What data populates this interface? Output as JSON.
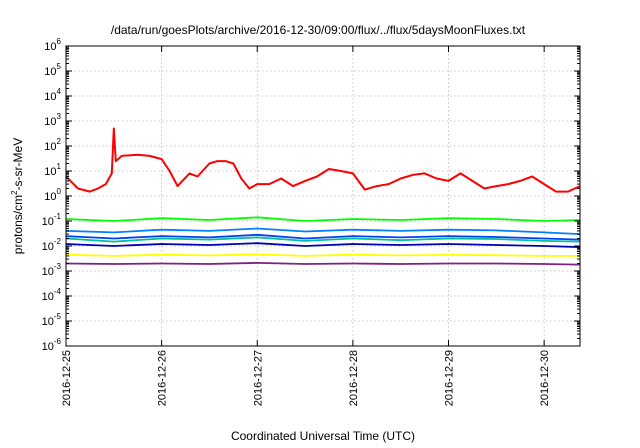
{
  "chart_data": {
    "type": "line",
    "title": "/data/run/goesPlots/archive/2016-12-30/09:00/flux/../flux/5daysMoonFluxes.txt",
    "xlabel": "Coordinated Universal Time (UTC)",
    "ylabel": {
      "base": "protons/cm",
      "sup": "2",
      "tail": "-s-sr-MeV"
    },
    "yscale": "log",
    "ylim": [
      1e-06,
      1000000.0
    ],
    "y_ticks": [
      {
        "base": "10",
        "exp": "-6",
        "value": 1e-06
      },
      {
        "base": "10",
        "exp": "-5",
        "value": 1e-05
      },
      {
        "base": "10",
        "exp": "-4",
        "value": 0.0001
      },
      {
        "base": "10",
        "exp": "-3",
        "value": 0.001
      },
      {
        "base": "10",
        "exp": "-2",
        "value": 0.01
      },
      {
        "base": "10",
        "exp": "-1",
        "value": 0.1
      },
      {
        "base": "10",
        "exp": "0",
        "value": 1
      },
      {
        "base": "10",
        "exp": "1",
        "value": 10
      },
      {
        "base": "10",
        "exp": "2",
        "value": 100
      },
      {
        "base": "10",
        "exp": "3",
        "value": 1000
      },
      {
        "base": "10",
        "exp": "4",
        "value": 10000
      },
      {
        "base": "10",
        "exp": "5",
        "value": 100000
      },
      {
        "base": "10",
        "exp": "6",
        "value": 1000000
      }
    ],
    "xlim": [
      "2016-12-25",
      "2016-12-30 09:00"
    ],
    "x_ticks": [
      "2016-12-25",
      "2016-12-26",
      "2016-12-27",
      "2016-12-28",
      "2016-12-29",
      "2016-12-30"
    ],
    "grid": true,
    "legend": "none",
    "colors": {
      "red": "#ff0000",
      "green": "#00ff00",
      "teal": "#00bfa0",
      "blue_light": "#0080ff",
      "blue_mid": "#0040ff",
      "navy": "#0000b0",
      "yellow": "#ffff00",
      "purple": "#802080"
    },
    "series": [
      {
        "color": "#ff0000",
        "x": [
          "2016-12-25 00:00",
          "2016-12-25 03:00",
          "2016-12-25 06:00",
          "2016-12-25 08:00",
          "2016-12-25 10:00",
          "2016-12-25 11:30",
          "2016-12-25 12:00",
          "2016-12-25 12:30",
          "2016-12-25 14:00",
          "2016-12-25 18:00",
          "2016-12-25 21:00",
          "2016-12-26 00:00",
          "2016-12-26 02:00",
          "2016-12-26 04:00",
          "2016-12-26 07:00",
          "2016-12-26 09:00",
          "2016-12-26 12:00",
          "2016-12-26 14:00",
          "2016-12-26 16:00",
          "2016-12-26 18:00",
          "2016-12-26 20:00",
          "2016-12-26 22:00",
          "2016-12-27 00:00",
          "2016-12-27 03:00",
          "2016-12-27 06:00",
          "2016-12-27 09:00",
          "2016-12-27 12:00",
          "2016-12-27 15:00",
          "2016-12-27 18:00",
          "2016-12-27 21:00",
          "2016-12-28 00:00",
          "2016-12-28 03:00",
          "2016-12-28 06:00",
          "2016-12-28 09:00",
          "2016-12-28 12:00",
          "2016-12-28 15:00",
          "2016-12-28 18:00",
          "2016-12-28 21:00",
          "2016-12-29 00:00",
          "2016-12-29 03:00",
          "2016-12-29 06:00",
          "2016-12-29 09:00",
          "2016-12-29 12:00",
          "2016-12-29 15:00",
          "2016-12-29 18:00",
          "2016-12-29 21:00",
          "2016-12-30 00:00",
          "2016-12-30 03:00",
          "2016-12-30 06:00",
          "2016-12-30 09:00"
        ],
        "y": [
          6,
          2,
          1.5,
          2,
          3,
          8,
          500,
          25,
          40,
          45,
          40,
          30,
          10,
          2.5,
          8,
          6,
          20,
          25,
          25,
          20,
          5,
          2,
          3,
          3,
          5,
          2.5,
          4,
          6,
          12,
          10,
          8,
          1.8,
          2.5,
          3,
          5,
          7,
          8,
          5,
          4,
          8,
          4,
          2,
          2.5,
          3,
          4,
          6,
          3,
          1.5,
          1.5,
          2.5
        ]
      },
      {
        "color": "#00ff00",
        "x": [
          "2016-12-25 00:00",
          "2016-12-25 12:00",
          "2016-12-26 00:00",
          "2016-12-26 12:00",
          "2016-12-27 00:00",
          "2016-12-27 12:00",
          "2016-12-28 00:00",
          "2016-12-28 12:00",
          "2016-12-29 00:00",
          "2016-12-29 12:00",
          "2016-12-30 00:00",
          "2016-12-30 09:00"
        ],
        "y": [
          0.12,
          0.1,
          0.13,
          0.11,
          0.14,
          0.1,
          0.12,
          0.11,
          0.13,
          0.12,
          0.1,
          0.11
        ]
      },
      {
        "color": "#00bfa0",
        "x": [
          "2016-12-25 00:00",
          "2016-12-25 12:00",
          "2016-12-26 00:00",
          "2016-12-26 12:00",
          "2016-12-27 00:00",
          "2016-12-27 12:00",
          "2016-12-28 00:00",
          "2016-12-28 12:00",
          "2016-12-29 00:00",
          "2016-12-29 12:00",
          "2016-12-30 00:00",
          "2016-12-30 09:00"
        ],
        "y": [
          0.02,
          0.015,
          0.02,
          0.018,
          0.022,
          0.016,
          0.02,
          0.017,
          0.02,
          0.019,
          0.016,
          0.015
        ]
      },
      {
        "color": "#0080ff",
        "x": [
          "2016-12-25 00:00",
          "2016-12-25 12:00",
          "2016-12-26 00:00",
          "2016-12-26 12:00",
          "2016-12-27 00:00",
          "2016-12-27 12:00",
          "2016-12-28 00:00",
          "2016-12-28 12:00",
          "2016-12-29 00:00",
          "2016-12-29 12:00",
          "2016-12-30 00:00",
          "2016-12-30 09:00"
        ],
        "y": [
          0.04,
          0.035,
          0.045,
          0.04,
          0.05,
          0.038,
          0.045,
          0.04,
          0.045,
          0.042,
          0.035,
          0.03
        ]
      },
      {
        "color": "#0040ff",
        "x": [
          "2016-12-25 00:00",
          "2016-12-25 12:00",
          "2016-12-26 00:00",
          "2016-12-26 12:00",
          "2016-12-27 00:00",
          "2016-12-27 12:00",
          "2016-12-28 00:00",
          "2016-12-28 12:00",
          "2016-12-29 00:00",
          "2016-12-29 12:00",
          "2016-12-30 00:00",
          "2016-12-30 09:00"
        ],
        "y": [
          0.025,
          0.02,
          0.025,
          0.022,
          0.028,
          0.02,
          0.025,
          0.022,
          0.025,
          0.023,
          0.02,
          0.018
        ]
      },
      {
        "color": "#0000b0",
        "x": [
          "2016-12-25 00:00",
          "2016-12-25 12:00",
          "2016-12-26 00:00",
          "2016-12-26 12:00",
          "2016-12-27 00:00",
          "2016-12-27 12:00",
          "2016-12-28 00:00",
          "2016-12-28 12:00",
          "2016-12-29 00:00",
          "2016-12-29 12:00",
          "2016-12-30 00:00",
          "2016-12-30 09:00"
        ],
        "y": [
          0.012,
          0.01,
          0.012,
          0.011,
          0.013,
          0.01,
          0.012,
          0.011,
          0.012,
          0.011,
          0.01,
          0.009
        ]
      },
      {
        "color": "#ffff00",
        "x": [
          "2016-12-25 00:00",
          "2016-12-25 12:00",
          "2016-12-26 00:00",
          "2016-12-26 12:00",
          "2016-12-27 00:00",
          "2016-12-27 12:00",
          "2016-12-28 00:00",
          "2016-12-28 12:00",
          "2016-12-29 00:00",
          "2016-12-29 12:00",
          "2016-12-30 00:00",
          "2016-12-30 09:00"
        ],
        "y": [
          0.0045,
          0.004,
          0.0045,
          0.0042,
          0.0046,
          0.004,
          0.0045,
          0.0042,
          0.0044,
          0.0043,
          0.004,
          0.004
        ]
      },
      {
        "color": "#802080",
        "x": [
          "2016-12-25 00:00",
          "2016-12-25 12:00",
          "2016-12-26 00:00",
          "2016-12-26 12:00",
          "2016-12-27 00:00",
          "2016-12-27 12:00",
          "2016-12-28 00:00",
          "2016-12-28 12:00",
          "2016-12-29 00:00",
          "2016-12-29 12:00",
          "2016-12-30 00:00",
          "2016-12-30 09:00"
        ],
        "y": [
          0.002,
          0.0019,
          0.002,
          0.0019,
          0.0021,
          0.0019,
          0.002,
          0.0019,
          0.002,
          0.002,
          0.0019,
          0.0018
        ]
      }
    ]
  }
}
